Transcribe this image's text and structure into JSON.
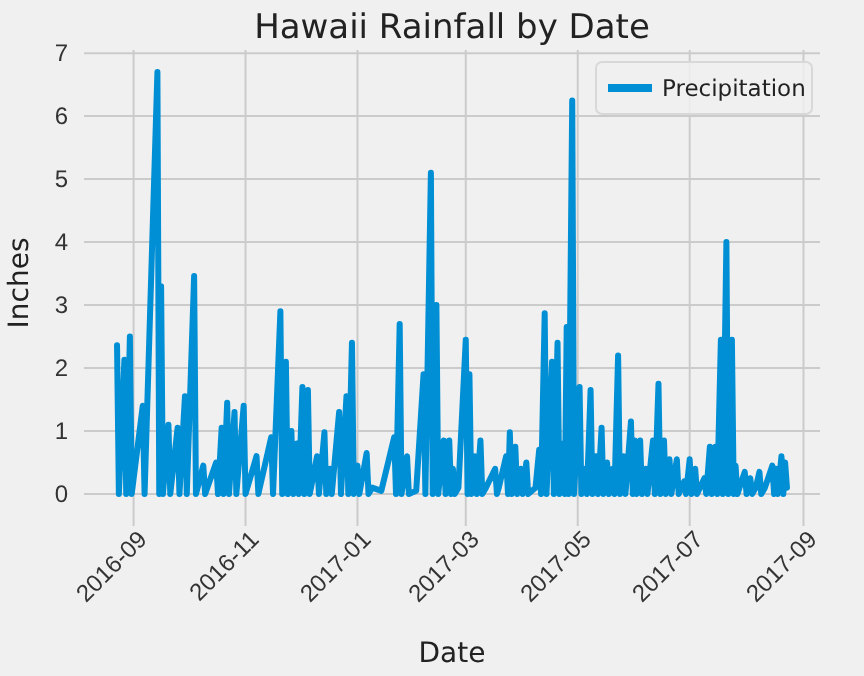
{
  "chart_data": {
    "type": "line",
    "title": "Hawaii Rainfall by Date",
    "xlabel": "Date",
    "ylabel": "Inches",
    "x": [
      "2016-08-23",
      "2016-08-24",
      "2016-08-27",
      "2016-08-28",
      "2016-08-30",
      "2016-08-31",
      "2016-09-06",
      "2016-09-07",
      "2016-09-14",
      "2016-09-15",
      "2016-09-16",
      "2016-09-17",
      "2016-09-20",
      "2016-09-21",
      "2016-09-25",
      "2016-09-26",
      "2016-09-29",
      "2016-09-30",
      "2016-10-04",
      "2016-10-05",
      "2016-10-09",
      "2016-10-10",
      "2016-10-16",
      "2016-10-17",
      "2016-10-19",
      "2016-10-20",
      "2016-10-22",
      "2016-10-23",
      "2016-10-26",
      "2016-10-27",
      "2016-10-31",
      "2016-11-01",
      "2016-11-07",
      "2016-11-08",
      "2016-11-15",
      "2016-11-16",
      "2016-11-20",
      "2016-11-21",
      "2016-11-23",
      "2016-11-24",
      "2016-11-26",
      "2016-11-27",
      "2016-11-29",
      "2016-11-30",
      "2016-12-02",
      "2016-12-03",
      "2016-12-05",
      "2016-12-06",
      "2016-12-10",
      "2016-12-11",
      "2016-12-14",
      "2016-12-15",
      "2016-12-17",
      "2016-12-18",
      "2016-12-22",
      "2016-12-23",
      "2016-12-26",
      "2016-12-27",
      "2016-12-29",
      "2016-12-30",
      "2017-01-01",
      "2017-01-02",
      "2017-01-06",
      "2017-01-07",
      "2017-01-09",
      "2017-01-14",
      "2017-01-21",
      "2017-01-22",
      "2017-01-24",
      "2017-01-25",
      "2017-01-28",
      "2017-01-29",
      "2017-02-02",
      "2017-02-06",
      "2017-02-07",
      "2017-02-10",
      "2017-02-11",
      "2017-02-13",
      "2017-02-14",
      "2017-02-17",
      "2017-02-18",
      "2017-02-20",
      "2017-02-21",
      "2017-02-22",
      "2017-02-23",
      "2017-02-25",
      "2017-03-01",
      "2017-03-02",
      "2017-03-03",
      "2017-03-04",
      "2017-03-06",
      "2017-03-07",
      "2017-03-09",
      "2017-03-10",
      "2017-03-12",
      "2017-03-17",
      "2017-03-18",
      "2017-03-19",
      "2017-03-23",
      "2017-03-24",
      "2017-03-25",
      "2017-03-26",
      "2017-03-28",
      "2017-03-29",
      "2017-03-31",
      "2017-04-01",
      "2017-04-03",
      "2017-04-04",
      "2017-04-08",
      "2017-04-10",
      "2017-04-11",
      "2017-04-13",
      "2017-04-14",
      "2017-04-17",
      "2017-04-18",
      "2017-04-20",
      "2017-04-21",
      "2017-04-23",
      "2017-04-24",
      "2017-04-25",
      "2017-04-26",
      "2017-04-28",
      "2017-04-29",
      "2017-05-02",
      "2017-05-03",
      "2017-05-05",
      "2017-05-06",
      "2017-05-08",
      "2017-05-09",
      "2017-05-11",
      "2017-05-12",
      "2017-05-14",
      "2017-05-15",
      "2017-05-17",
      "2017-05-18",
      "2017-05-20",
      "2017-05-21",
      "2017-05-23",
      "2017-05-24",
      "2017-05-26",
      "2017-05-27",
      "2017-05-30",
      "2017-05-31",
      "2017-06-01",
      "2017-06-02",
      "2017-06-04",
      "2017-06-05",
      "2017-06-07",
      "2017-06-08",
      "2017-06-11",
      "2017-06-12",
      "2017-06-14",
      "2017-06-15",
      "2017-06-17",
      "2017-06-18",
      "2017-06-20",
      "2017-06-21",
      "2017-06-24",
      "2017-06-25",
      "2017-06-28",
      "2017-06-29",
      "2017-07-01",
      "2017-07-02",
      "2017-07-04",
      "2017-07-05",
      "2017-07-09",
      "2017-07-10",
      "2017-07-12",
      "2017-07-13",
      "2017-07-15",
      "2017-07-16",
      "2017-07-18",
      "2017-07-19",
      "2017-07-21",
      "2017-07-22",
      "2017-07-24",
      "2017-07-25",
      "2017-07-26",
      "2017-07-27",
      "2017-07-31",
      "2017-08-01",
      "2017-08-03",
      "2017-08-04",
      "2017-08-06",
      "2017-08-08",
      "2017-08-09",
      "2017-08-11",
      "2017-08-15",
      "2017-08-16",
      "2017-08-17",
      "2017-08-18",
      "2017-08-20",
      "2017-08-21",
      "2017-08-22",
      "2017-08-23"
    ],
    "series": [
      {
        "name": "Precipitation",
        "color": "#008fd5",
        "values": [
          2.36,
          0,
          2.13,
          0,
          2.5,
          0,
          1.4,
          0,
          6.7,
          0,
          3.3,
          0,
          1.1,
          0,
          1.05,
          0,
          1.55,
          0,
          3.46,
          0,
          0.45,
          0,
          0.5,
          0,
          1.05,
          0,
          1.45,
          0,
          1.3,
          0,
          1.4,
          0,
          0.6,
          0,
          0.9,
          0,
          2.9,
          0,
          2.1,
          0,
          1.0,
          0,
          0.8,
          0,
          1.7,
          0,
          1.65,
          0,
          0.6,
          0,
          0.98,
          0,
          0.4,
          0,
          1.3,
          0,
          1.55,
          0,
          2.4,
          0,
          0.45,
          0,
          0.65,
          0,
          0.1,
          0.05,
          0.9,
          0,
          2.7,
          0,
          0.6,
          0,
          0.05,
          1.9,
          0,
          5.1,
          0,
          3.0,
          0,
          0.85,
          0,
          0.85,
          0,
          0.4,
          0,
          0.1,
          2.45,
          0,
          1.9,
          0,
          0.6,
          0,
          0.85,
          0,
          0.1,
          0.4,
          0,
          0.1,
          0.6,
          0,
          0.98,
          0,
          0.75,
          0,
          0.4,
          0,
          0.5,
          0,
          0.1,
          0.7,
          0,
          2.87,
          0,
          2.1,
          0,
          2.4,
          0,
          0.8,
          0,
          2.65,
          0,
          6.25,
          0,
          1.7,
          0,
          0.4,
          0,
          1.65,
          0,
          0.6,
          0,
          1.05,
          0,
          0.5,
          0,
          0.4,
          0,
          2.2,
          0,
          0.6,
          0,
          1.15,
          0,
          0.85,
          0,
          0.85,
          0,
          0.4,
          0,
          0.85,
          0,
          1.75,
          0,
          0.85,
          0,
          0.55,
          0,
          0.55,
          0,
          0.2,
          0,
          0.55,
          0,
          0.4,
          0,
          0.25,
          0,
          0.75,
          0,
          0.75,
          0,
          2.45,
          0,
          4.0,
          0,
          2.45,
          0,
          0.45,
          0,
          0.35,
          0,
          0.25,
          0,
          0.1,
          0.35,
          0,
          0.1,
          0.45,
          0,
          0.4,
          0,
          0.6,
          0,
          0.5,
          0.1
        ]
      }
    ],
    "xlim": [
      "2016-08-05",
      "2017-09-10"
    ],
    "xticks": [
      "2016-09",
      "2016-11",
      "2017-01",
      "2017-03",
      "2017-05",
      "2017-07",
      "2017-09"
    ],
    "ylim": [
      -0.35,
      7.05
    ],
    "yticks": [
      0,
      1,
      2,
      3,
      4,
      5,
      6,
      7
    ],
    "grid": true,
    "legend": "top right",
    "line_style": "solid",
    "marker": "none"
  }
}
